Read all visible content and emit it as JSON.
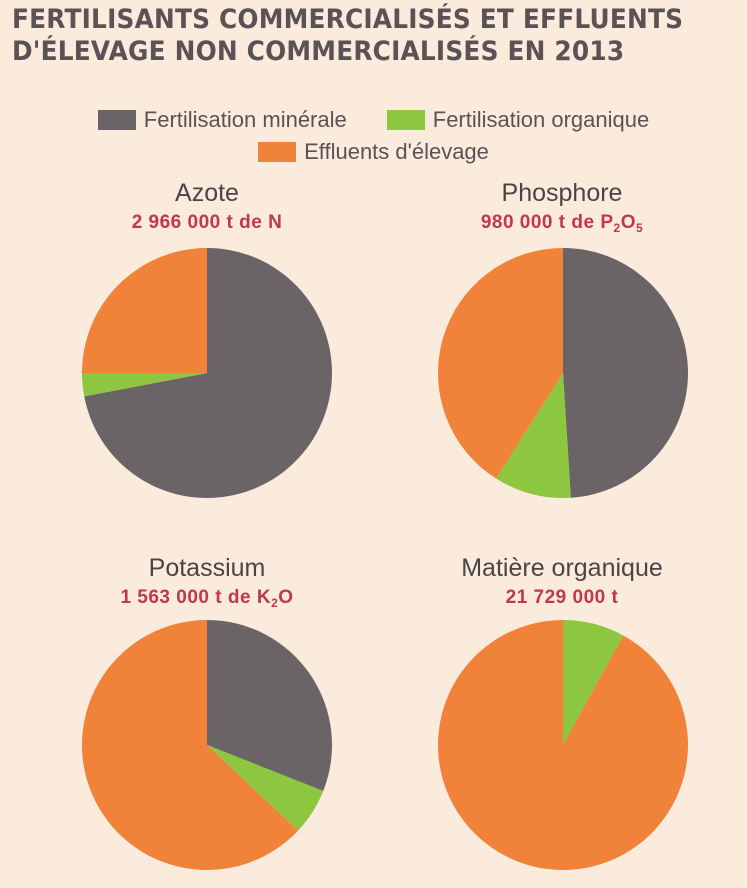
{
  "title_line1": "FERTILISANTS COMMERCIALISÉS ET EFFLUENTS",
  "title_line2": "D'ÉLEVAGE NON COMMERCIALISÉS EN 2013",
  "legend": [
    {
      "label": "Fertilisation minérale",
      "color": "#6b6466"
    },
    {
      "label": "Fertilisation organique",
      "color": "#8dc63f"
    },
    {
      "label": "Effluents d'élevage",
      "color": "#f0823a"
    }
  ],
  "chart_data": [
    {
      "type": "pie",
      "title": "Azote",
      "total": {
        "value": "2 966 000",
        "unit_prefix": "t de ",
        "element": "N"
      },
      "categories": [
        "Fertilisation minérale",
        "Fertilisation organique",
        "Effluents d'élevage"
      ],
      "values": [
        72,
        3,
        25
      ],
      "colors": [
        "#6b6466",
        "#8dc63f",
        "#f0823a"
      ]
    },
    {
      "type": "pie",
      "title": "Phosphore",
      "total": {
        "value": "980 000",
        "unit_prefix": "t de ",
        "element": "P",
        "sub1": "2",
        "element2": "O",
        "sub2": "5"
      },
      "categories": [
        "Fertilisation minérale",
        "Fertilisation organique",
        "Effluents d'élevage"
      ],
      "values": [
        49,
        10,
        41
      ],
      "colors": [
        "#6b6466",
        "#8dc63f",
        "#f0823a"
      ]
    },
    {
      "type": "pie",
      "title": "Potassium",
      "total": {
        "value": "1 563 000",
        "unit_prefix": "t de ",
        "element": "K",
        "sub1": "2",
        "element2": "O"
      },
      "categories": [
        "Fertilisation minérale",
        "Fertilisation organique",
        "Effluents d'élevage"
      ],
      "values": [
        31,
        6,
        63
      ],
      "colors": [
        "#6b6466",
        "#8dc63f",
        "#f0823a"
      ]
    },
    {
      "type": "pie",
      "title": "Matière organique",
      "total": {
        "value": "21 729 000 t"
      },
      "categories": [
        "Fertilisation minérale",
        "Fertilisation organique",
        "Effluents d'élevage"
      ],
      "values": [
        0,
        8,
        92
      ],
      "colors": [
        "#6b6466",
        "#8dc63f",
        "#f0823a"
      ]
    }
  ]
}
